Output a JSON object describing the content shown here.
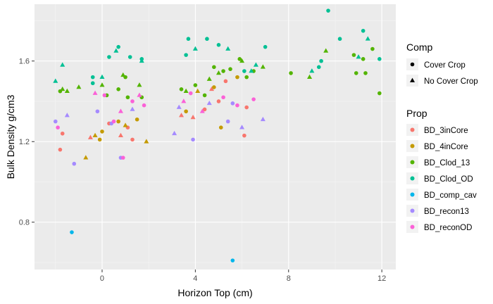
{
  "chart_data": {
    "type": "scatter",
    "xlabel": "Horizon Top (cm)",
    "ylabel": "Bulk Density g/cm3",
    "xlim": [
      -2.9,
      12.6
    ],
    "ylim": [
      0.565,
      1.882
    ],
    "x_ticks": [
      0,
      4,
      8,
      12
    ],
    "y_ticks": [
      0.8,
      1.2,
      1.6
    ],
    "grid": true,
    "legend_placement": "right",
    "legends": {
      "shape": {
        "title": "Comp",
        "entries": [
          {
            "label": "Cover Crop",
            "shape": "circle"
          },
          {
            "label": "No Cover Crop",
            "shape": "triangle"
          }
        ]
      },
      "color": {
        "title": "Prop",
        "entries": [
          {
            "label": "BD_3inCore",
            "color": "#F8766D"
          },
          {
            "label": "BD_4inCore",
            "color": "#C49A00"
          },
          {
            "label": "BD_Clod_13",
            "color": "#53B400"
          },
          {
            "label": "BD_Clod_OD",
            "color": "#00C094"
          },
          {
            "label": "BD_comp_cav",
            "color": "#00B6EB"
          },
          {
            "label": "BD_recon13",
            "color": "#A58AFF"
          },
          {
            "label": "BD_reconOD",
            "color": "#FB61D7"
          }
        ]
      }
    },
    "series": [
      {
        "name": "BD_3inCore",
        "color": "#F8766D",
        "points": [
          {
            "x": -1.7,
            "y": 1.24,
            "s": "c"
          },
          {
            "x": -0.5,
            "y": 1.22,
            "s": "t"
          },
          {
            "x": 0.3,
            "y": 1.29,
            "s": "c"
          },
          {
            "x": 0.8,
            "y": 1.23,
            "s": "t"
          },
          {
            "x": 1.1,
            "y": 1.27,
            "s": "c"
          },
          {
            "x": 1.3,
            "y": 1.21,
            "s": "c"
          },
          {
            "x": 3.4,
            "y": 1.33,
            "s": "t"
          },
          {
            "x": 3.9,
            "y": 1.32,
            "s": "t"
          },
          {
            "x": 4.4,
            "y": 1.36,
            "s": "c"
          },
          {
            "x": 4.7,
            "y": 1.46,
            "s": "t"
          },
          {
            "x": 5.0,
            "y": 1.4,
            "s": "c"
          },
          {
            "x": 5.3,
            "y": 1.5,
            "s": "c"
          },
          {
            "x": 6.1,
            "y": 1.23,
            "s": "c"
          },
          {
            "x": 6.2,
            "y": 1.37,
            "s": "c"
          },
          {
            "x": -1.8,
            "y": 1.16,
            "s": "c"
          }
        ]
      },
      {
        "name": "BD_4inCore",
        "color": "#C49A00",
        "points": [
          {
            "x": -0.7,
            "y": 1.12,
            "s": "t"
          },
          {
            "x": -0.3,
            "y": 1.23,
            "s": "t"
          },
          {
            "x": -0.1,
            "y": 1.21,
            "s": "c"
          },
          {
            "x": 0.0,
            "y": 1.25,
            "s": "c"
          },
          {
            "x": 0.7,
            "y": 1.3,
            "s": "c"
          },
          {
            "x": 1.0,
            "y": 1.28,
            "s": "t"
          },
          {
            "x": 1.5,
            "y": 1.31,
            "s": "c"
          },
          {
            "x": 1.9,
            "y": 1.2,
            "s": "t"
          },
          {
            "x": 3.6,
            "y": 1.35,
            "s": "c"
          },
          {
            "x": 4.1,
            "y": 1.45,
            "s": "t"
          },
          {
            "x": 4.8,
            "y": 1.47,
            "s": "c"
          },
          {
            "x": 5.1,
            "y": 1.27,
            "s": "c"
          },
          {
            "x": 5.8,
            "y": 1.52,
            "s": "c"
          }
        ]
      },
      {
        "name": "BD_Clod_13",
        "color": "#53B400",
        "points": [
          {
            "x": -1.8,
            "y": 1.45,
            "s": "c"
          },
          {
            "x": -1.7,
            "y": 1.46,
            "s": "t"
          },
          {
            "x": -1.5,
            "y": 1.45,
            "s": "t"
          },
          {
            "x": -1.0,
            "y": 1.47,
            "s": "t"
          },
          {
            "x": 0.0,
            "y": 1.48,
            "s": "t"
          },
          {
            "x": 0.2,
            "y": 1.43,
            "s": "c"
          },
          {
            "x": 0.7,
            "y": 1.46,
            "s": "c"
          },
          {
            "x": 0.9,
            "y": 1.53,
            "s": "t"
          },
          {
            "x": 1.0,
            "y": 1.52,
            "s": "c"
          },
          {
            "x": 1.1,
            "y": 1.42,
            "s": "c"
          },
          {
            "x": 1.6,
            "y": 1.48,
            "s": "t"
          },
          {
            "x": 1.7,
            "y": 1.42,
            "s": "c"
          },
          {
            "x": 3.4,
            "y": 1.46,
            "s": "c"
          },
          {
            "x": 3.6,
            "y": 1.45,
            "s": "t"
          },
          {
            "x": 4.0,
            "y": 1.48,
            "s": "c"
          },
          {
            "x": 4.4,
            "y": 1.43,
            "s": "c"
          },
          {
            "x": 4.6,
            "y": 1.51,
            "s": "t"
          },
          {
            "x": 4.8,
            "y": 1.57,
            "s": "c"
          },
          {
            "x": 5.0,
            "y": 1.54,
            "s": "t"
          },
          {
            "x": 5.2,
            "y": 1.55,
            "s": "c"
          },
          {
            "x": 5.5,
            "y": 1.56,
            "s": "c"
          },
          {
            "x": 5.9,
            "y": 1.61,
            "s": "c"
          },
          {
            "x": 6.0,
            "y": 1.6,
            "s": "t"
          },
          {
            "x": 6.2,
            "y": 1.52,
            "s": "c"
          },
          {
            "x": 6.5,
            "y": 1.55,
            "s": "c"
          },
          {
            "x": 6.9,
            "y": 1.57,
            "s": "t"
          },
          {
            "x": 8.1,
            "y": 1.54,
            "s": "c"
          },
          {
            "x": 8.9,
            "y": 1.52,
            "s": "t"
          },
          {
            "x": 9.6,
            "y": 1.65,
            "s": "t"
          },
          {
            "x": 10.8,
            "y": 1.63,
            "s": "c"
          },
          {
            "x": 10.9,
            "y": 1.54,
            "s": "c"
          },
          {
            "x": 11.2,
            "y": 1.61,
            "s": "c"
          },
          {
            "x": 11.3,
            "y": 1.54,
            "s": "c"
          },
          {
            "x": 11.6,
            "y": 1.66,
            "s": "c"
          },
          {
            "x": 11.9,
            "y": 1.44,
            "s": "c"
          }
        ]
      },
      {
        "name": "BD_Clod_OD",
        "color": "#00C094",
        "points": [
          {
            "x": -2.0,
            "y": 1.5,
            "s": "t"
          },
          {
            "x": -1.7,
            "y": 1.58,
            "s": "t"
          },
          {
            "x": -0.4,
            "y": 1.52,
            "s": "c"
          },
          {
            "x": -0.4,
            "y": 1.49,
            "s": "c"
          },
          {
            "x": 0.0,
            "y": 1.52,
            "s": "t"
          },
          {
            "x": 0.3,
            "y": 1.62,
            "s": "c"
          },
          {
            "x": 0.6,
            "y": 1.65,
            "s": "t"
          },
          {
            "x": 0.7,
            "y": 1.67,
            "s": "c"
          },
          {
            "x": 1.2,
            "y": 1.62,
            "s": "c"
          },
          {
            "x": 1.7,
            "y": 1.6,
            "s": "t"
          },
          {
            "x": 1.7,
            "y": 1.61,
            "s": "c"
          },
          {
            "x": 3.6,
            "y": 1.63,
            "s": "c"
          },
          {
            "x": 3.7,
            "y": 1.71,
            "s": "c"
          },
          {
            "x": 4.0,
            "y": 1.66,
            "s": "t"
          },
          {
            "x": 4.5,
            "y": 1.71,
            "s": "c"
          },
          {
            "x": 5.0,
            "y": 1.68,
            "s": "c"
          },
          {
            "x": 5.4,
            "y": 1.66,
            "s": "t"
          },
          {
            "x": 6.1,
            "y": 1.55,
            "s": "c"
          },
          {
            "x": 6.4,
            "y": 1.55,
            "s": "t"
          },
          {
            "x": 6.6,
            "y": 1.58,
            "s": "t"
          },
          {
            "x": 7.0,
            "y": 1.67,
            "s": "c"
          },
          {
            "x": 9.4,
            "y": 1.6,
            "s": "c"
          },
          {
            "x": 9.3,
            "y": 1.57,
            "s": "c"
          },
          {
            "x": 9.0,
            "y": 1.55,
            "s": "t"
          },
          {
            "x": 9.7,
            "y": 1.85,
            "s": "c"
          },
          {
            "x": 10.2,
            "y": 1.71,
            "s": "c"
          },
          {
            "x": 11.0,
            "y": 1.62,
            "s": "t"
          },
          {
            "x": 11.2,
            "y": 1.75,
            "s": "c"
          },
          {
            "x": 11.4,
            "y": 1.71,
            "s": "t"
          },
          {
            "x": 11.9,
            "y": 1.61,
            "s": "c"
          }
        ]
      },
      {
        "name": "BD_comp_cav",
        "color": "#00B6EB",
        "points": [
          {
            "x": -1.3,
            "y": 0.75,
            "s": "c"
          },
          {
            "x": 5.6,
            "y": 0.61,
            "s": "c"
          }
        ]
      },
      {
        "name": "BD_recon13",
        "color": "#A58AFF",
        "points": [
          {
            "x": -2.0,
            "y": 1.3,
            "s": "c"
          },
          {
            "x": -1.5,
            "y": 1.33,
            "s": "t"
          },
          {
            "x": -1.2,
            "y": 1.09,
            "s": "c"
          },
          {
            "x": -0.2,
            "y": 1.35,
            "s": "c"
          },
          {
            "x": 0.4,
            "y": 1.29,
            "s": "c"
          },
          {
            "x": 0.8,
            "y": 1.12,
            "s": "c"
          },
          {
            "x": 1.3,
            "y": 1.36,
            "s": "t"
          },
          {
            "x": 3.1,
            "y": 1.24,
            "s": "t"
          },
          {
            "x": 3.3,
            "y": 1.37,
            "s": "t"
          },
          {
            "x": 3.9,
            "y": 1.21,
            "s": "c"
          },
          {
            "x": 4.6,
            "y": 1.39,
            "s": "t"
          },
          {
            "x": 5.4,
            "y": 1.3,
            "s": "c"
          },
          {
            "x": 5.6,
            "y": 1.39,
            "s": "c"
          },
          {
            "x": 6.0,
            "y": 1.27,
            "s": "t"
          },
          {
            "x": 6.9,
            "y": 1.31,
            "s": "t"
          }
        ]
      },
      {
        "name": "BD_reconOD",
        "color": "#FB61D7",
        "points": [
          {
            "x": -1.9,
            "y": 1.27,
            "s": "c"
          },
          {
            "x": -0.3,
            "y": 1.44,
            "s": "t"
          },
          {
            "x": 0.1,
            "y": 1.43,
            "s": "c"
          },
          {
            "x": 0.5,
            "y": 1.3,
            "s": "c"
          },
          {
            "x": 0.8,
            "y": 1.35,
            "s": "t"
          },
          {
            "x": 1.3,
            "y": 1.4,
            "s": "c"
          },
          {
            "x": 1.6,
            "y": 1.43,
            "s": "t"
          },
          {
            "x": 1.8,
            "y": 1.38,
            "s": "c"
          },
          {
            "x": 3.5,
            "y": 1.4,
            "s": "t"
          },
          {
            "x": 3.8,
            "y": 1.44,
            "s": "c"
          },
          {
            "x": 4.3,
            "y": 1.35,
            "s": "t"
          },
          {
            "x": 5.2,
            "y": 1.42,
            "s": "c"
          },
          {
            "x": 5.8,
            "y": 1.38,
            "s": "c"
          },
          {
            "x": 6.5,
            "y": 1.41,
            "s": "c"
          },
          {
            "x": 0.9,
            "y": 1.12,
            "s": "c"
          }
        ]
      }
    ]
  }
}
